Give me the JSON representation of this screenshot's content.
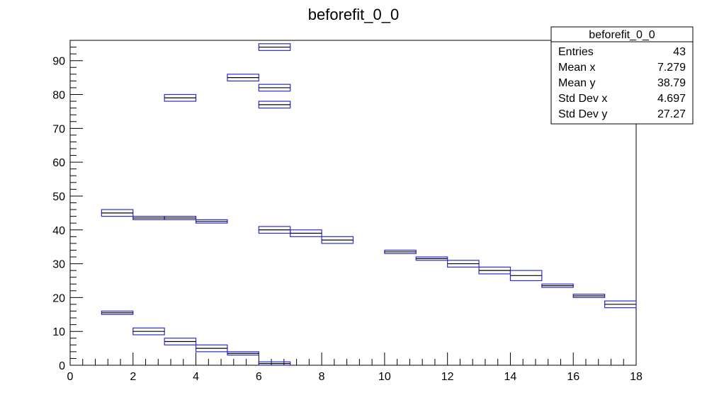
{
  "chart_data": {
    "type": "box-histogram",
    "title": "beforefit_0_0",
    "xlabel": "",
    "ylabel": "",
    "xlim": [
      0,
      18
    ],
    "ylim": [
      0,
      96
    ],
    "x_ticks": [
      0,
      2,
      4,
      6,
      8,
      10,
      12,
      14,
      16,
      18
    ],
    "y_ticks": [
      0,
      10,
      20,
      30,
      40,
      50,
      60,
      70,
      80,
      90
    ],
    "line_color": "#2b2bd0",
    "bins": [
      {
        "x": [
          1,
          2
        ],
        "y": [
          15,
          16
        ]
      },
      {
        "x": [
          1,
          2
        ],
        "y": [
          44,
          46
        ]
      },
      {
        "x": [
          2,
          3
        ],
        "y": [
          9,
          11
        ]
      },
      {
        "x": [
          2,
          3
        ],
        "y": [
          43,
          44
        ]
      },
      {
        "x": [
          3,
          4
        ],
        "y": [
          6,
          8
        ]
      },
      {
        "x": [
          3,
          4
        ],
        "y": [
          43,
          44
        ]
      },
      {
        "x": [
          3,
          4
        ],
        "y": [
          78,
          80
        ]
      },
      {
        "x": [
          4,
          5
        ],
        "y": [
          4,
          6
        ]
      },
      {
        "x": [
          4,
          5
        ],
        "y": [
          42,
          43
        ]
      },
      {
        "x": [
          5,
          6
        ],
        "y": [
          3,
          4
        ]
      },
      {
        "x": [
          5,
          6
        ],
        "y": [
          84,
          86
        ]
      },
      {
        "x": [
          6,
          7
        ],
        "y": [
          0,
          1
        ]
      },
      {
        "x": [
          6,
          7
        ],
        "y": [
          39,
          41
        ]
      },
      {
        "x": [
          6,
          7
        ],
        "y": [
          76,
          78
        ]
      },
      {
        "x": [
          6,
          7
        ],
        "y": [
          81,
          83
        ]
      },
      {
        "x": [
          6,
          7
        ],
        "y": [
          93,
          95
        ]
      },
      {
        "x": [
          7,
          8
        ],
        "y": [
          38,
          40
        ]
      },
      {
        "x": [
          8,
          9
        ],
        "y": [
          36,
          38
        ]
      },
      {
        "x": [
          10,
          11
        ],
        "y": [
          33,
          34
        ]
      },
      {
        "x": [
          11,
          12
        ],
        "y": [
          31,
          32
        ]
      },
      {
        "x": [
          12,
          13
        ],
        "y": [
          29,
          31
        ]
      },
      {
        "x": [
          13,
          14
        ],
        "y": [
          27,
          29
        ]
      },
      {
        "x": [
          14,
          15
        ],
        "y": [
          25,
          28
        ]
      },
      {
        "x": [
          15,
          16
        ],
        "y": [
          23,
          24
        ]
      },
      {
        "x": [
          16,
          17
        ],
        "y": [
          20,
          21
        ]
      },
      {
        "x": [
          17,
          18
        ],
        "y": [
          17,
          19
        ]
      }
    ],
    "stats_box": {
      "title": "beforefit_0_0",
      "rows": [
        {
          "label": "Entries",
          "value": "43"
        },
        {
          "label": "Mean x",
          "value": "7.279"
        },
        {
          "label": "Mean y",
          "value": "38.79"
        },
        {
          "label": "Std Dev x",
          "value": "4.697"
        },
        {
          "label": "Std Dev y",
          "value": "27.27"
        }
      ]
    }
  }
}
